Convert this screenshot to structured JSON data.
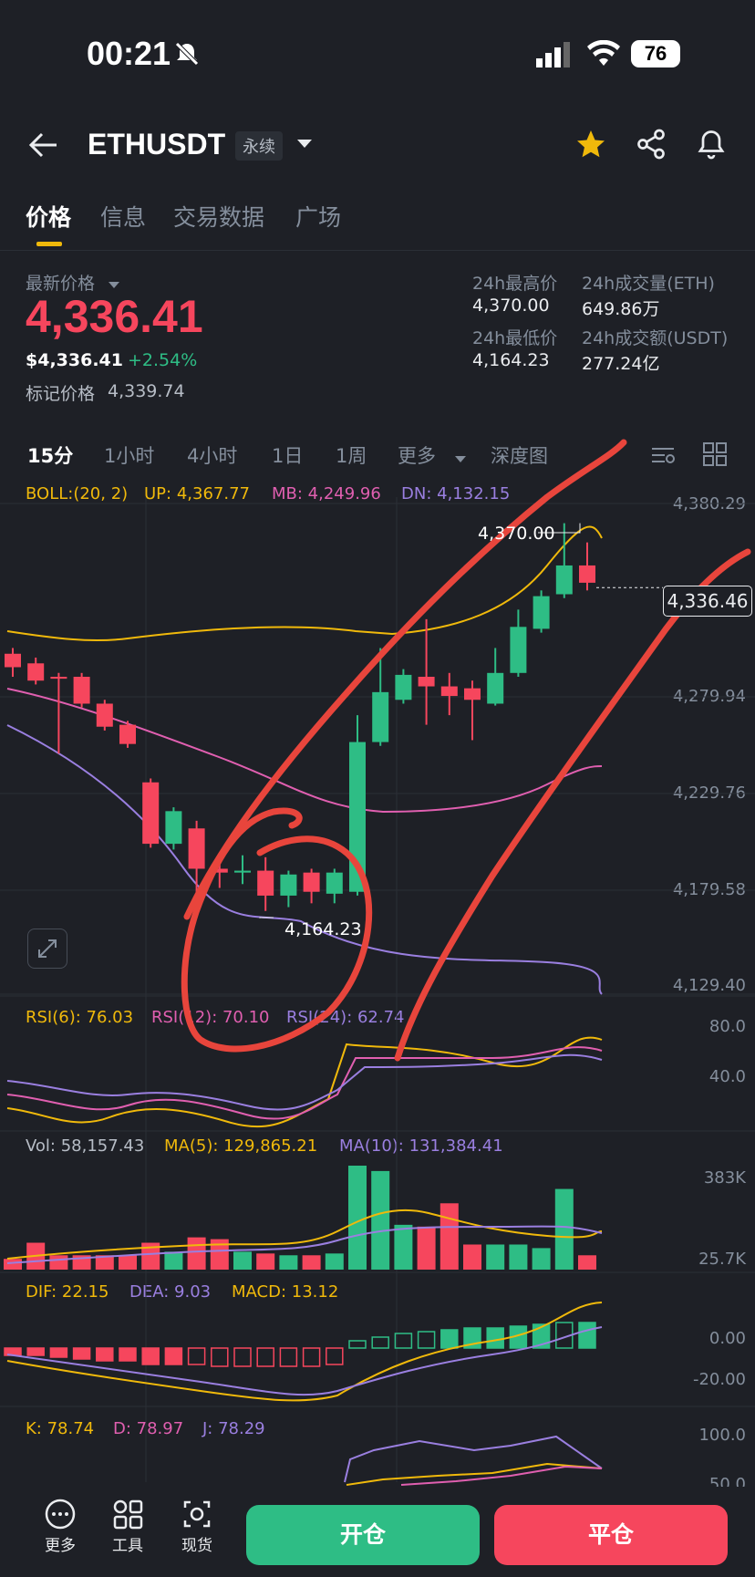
{
  "status_bar": {
    "time": "00:21",
    "battery": "76"
  },
  "header": {
    "pair": "ETHUSDT",
    "contract_type": "永续"
  },
  "tabs": [
    "价格",
    "信息",
    "交易数据",
    "广场"
  ],
  "ticker": {
    "last_price_label": "最新价格",
    "last_price": "4,336.41",
    "usd_price": "$4,336.41",
    "change": "+2.54%",
    "mark_price_label": "标记价格",
    "mark_price": "4,339.74",
    "high_label": "24h最高价",
    "high": "4,370.00",
    "low_label": "24h最低价",
    "low": "4,164.23",
    "vol_eth_label": "24h成交量(ETH)",
    "vol_eth": "649.86万",
    "vol_usdt_label": "24h成交额(USDT)",
    "vol_usdt": "277.24亿"
  },
  "intervals": [
    "15分",
    "1小时",
    "4小时",
    "1日",
    "1周",
    "更多",
    "深度图"
  ],
  "indicators": {
    "boll": {
      "label": "BOLL:(20, 2)",
      "up": "UP: 4,367.77",
      "mb": "MB: 4,249.96",
      "dn": "DN: 4,132.15"
    },
    "rsi": {
      "r6": "RSI(6): 76.03",
      "r12": "RSI(12): 70.10",
      "r24": "RSI(24): 62.74"
    },
    "vol": {
      "vol": "Vol: 58,157.43",
      "ma5": "MA(5): 129,865.21",
      "ma10": "MA(10): 131,384.41"
    },
    "macd": {
      "dif": "DIF: 22.15",
      "dea": "DEA: 9.03",
      "macd": "MACD: 13.12"
    },
    "kdj": {
      "k": "K: 78.74",
      "d": "D: 78.97",
      "j": "J: 78.29"
    }
  },
  "axis": {
    "price": [
      "4,380.29",
      "4,279.94",
      "4,229.76",
      "4,179.58",
      "4,129.40"
    ],
    "rsi": [
      "80.0",
      "40.0"
    ],
    "vol": [
      "383K",
      "25.7K"
    ],
    "macd": [
      "0.00",
      "-20.00"
    ],
    "kdj": [
      "100.0",
      "50.0"
    ]
  },
  "chart_labels": {
    "high_marker": "4,370.00",
    "low_marker": "4,164.23",
    "current_tag": "4,336.46"
  },
  "bottom": {
    "more": "更多",
    "tools": "工具",
    "spot": "现货",
    "open": "开仓",
    "close": "平仓"
  },
  "colors": {
    "up": "#2ebd85",
    "down": "#f6465d",
    "accent": "#f0b90b",
    "annotation": "#e8453c"
  },
  "chart_data": {
    "type": "candlestick",
    "candles": [
      {
        "o": 4302,
        "h": 4305,
        "c": 4295,
        "l": 4290
      },
      {
        "o": 4297,
        "h": 4300,
        "c": 4288,
        "l": 4286
      },
      {
        "o": 4290,
        "h": 4292,
        "c": 4289,
        "l": 4250
      },
      {
        "o": 4290,
        "h": 4292,
        "c": 4276,
        "l": 4274
      },
      {
        "o": 4276,
        "h": 4278,
        "c": 4264,
        "l": 4262
      },
      {
        "o": 4265,
        "h": 4267,
        "c": 4255,
        "l": 4253
      },
      {
        "o": 4235,
        "h": 4237,
        "c": 4203,
        "l": 4201
      },
      {
        "o": 4203,
        "h": 4222,
        "c": 4220,
        "l": 4200
      },
      {
        "o": 4211,
        "h": 4215,
        "c": 4190,
        "l": 4170
      },
      {
        "o": 4190,
        "h": 4196,
        "c": 4188,
        "l": 4180
      },
      {
        "o": 4188,
        "h": 4197,
        "c": 4189,
        "l": 4182
      },
      {
        "o": 4189,
        "h": 4196,
        "c": 4176,
        "l": 4168
      },
      {
        "o": 4176,
        "h": 4189,
        "c": 4187,
        "l": 4170
      },
      {
        "o": 4188,
        "h": 4190,
        "c": 4178,
        "l": 4172
      },
      {
        "o": 4177,
        "h": 4190,
        "c": 4188,
        "l": 4172
      },
      {
        "o": 4178,
        "h": 4270,
        "c": 4256,
        "l": 4176
      },
      {
        "o": 4256,
        "h": 4305,
        "c": 4282,
        "l": 4254
      },
      {
        "o": 4278,
        "h": 4294,
        "c": 4291,
        "l": 4276
      },
      {
        "o": 4290,
        "h": 4320,
        "c": 4285,
        "l": 4265
      },
      {
        "o": 4285,
        "h": 4292,
        "c": 4280,
        "l": 4270
      },
      {
        "o": 4284,
        "h": 4288,
        "c": 4278,
        "l": 4257
      },
      {
        "o": 4276,
        "h": 4305,
        "c": 4292,
        "l": 4275
      },
      {
        "o": 4292,
        "h": 4325,
        "c": 4316,
        "l": 4290
      },
      {
        "o": 4315,
        "h": 4335,
        "c": 4332,
        "l": 4313
      },
      {
        "o": 4333,
        "h": 4370,
        "c": 4348,
        "l": 4331
      },
      {
        "o": 4348,
        "h": 4360,
        "c": 4339,
        "l": 4335
      }
    ],
    "volume": [
      6,
      15,
      8,
      8,
      8,
      8,
      15,
      10,
      18,
      17,
      10,
      9,
      8,
      8,
      9,
      58,
      55,
      25,
      24,
      37,
      14,
      14,
      14,
      12,
      45,
      8
    ]
  }
}
